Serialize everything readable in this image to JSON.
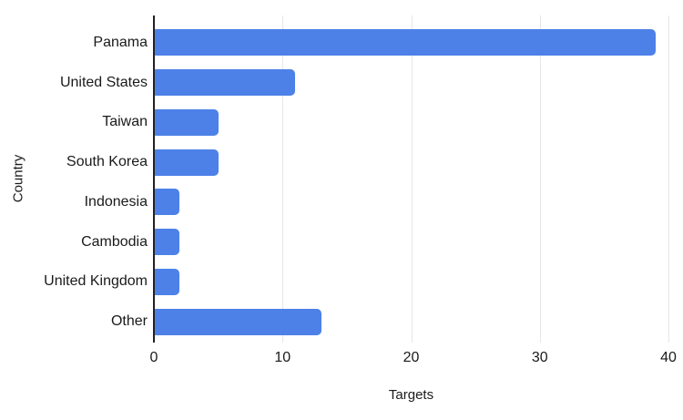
{
  "chart_data": {
    "type": "bar",
    "orientation": "horizontal",
    "categories": [
      "Panama",
      "United States",
      "Taiwan",
      "South Korea",
      "Indonesia",
      "Cambodia",
      "United Kingdom",
      "Other"
    ],
    "values": [
      39,
      11,
      5,
      5,
      2,
      2,
      2,
      13
    ],
    "title": "",
    "xlabel": "Targets",
    "ylabel": "Country",
    "xlim": [
      0,
      40
    ],
    "xticks": [
      0,
      10,
      20,
      30,
      40
    ],
    "grid": "vertical-only",
    "legend": "none",
    "colors": {
      "bar": "#4d81e8",
      "axis_line": "#212121",
      "gridline": "#e6e6e6",
      "text": "#1a1a1a",
      "background": "#ffffff"
    }
  }
}
